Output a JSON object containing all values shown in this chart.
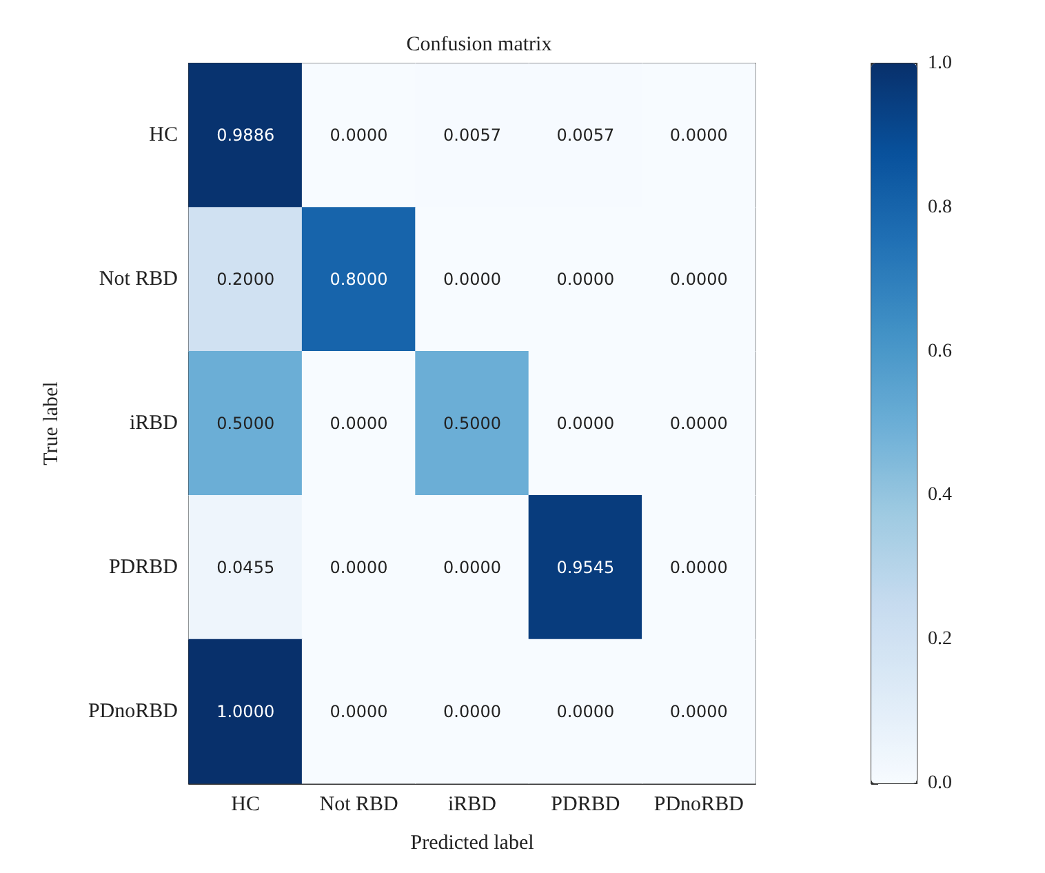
{
  "chart_data": {
    "type": "heatmap",
    "title": "Confusion matrix",
    "xlabel": "Predicted label",
    "ylabel": "True label",
    "categories": [
      "HC",
      "Not RBD",
      "iRBD",
      "PDRBD",
      "PDnoRBD"
    ],
    "y_categories": [
      "HC",
      "Not RBD",
      "iRBD",
      "PDRBD",
      "PDnoRBD"
    ],
    "cells": [
      [
        0.9886,
        0,
        0.0057,
        0.0057,
        0
      ],
      [
        0.2,
        0.8,
        0,
        0,
        0
      ],
      [
        0.5,
        0,
        0.5,
        0,
        0
      ],
      [
        0.0455,
        0,
        0,
        0.9545,
        0
      ],
      [
        1,
        0,
        0,
        0,
        0
      ]
    ],
    "cell_labels": [
      [
        "0.9886",
        "0.0000",
        "0.0057",
        "0.0057",
        "0.0000"
      ],
      [
        "0.2000",
        "0.8000",
        "0.0000",
        "0.0000",
        "0.0000"
      ],
      [
        "0.5000",
        "0.0000",
        "0.5000",
        "0.0000",
        "0.0000"
      ],
      [
        "0.0455",
        "0.0000",
        "0.0000",
        "0.9545",
        "0.0000"
      ],
      [
        "1.0000",
        "0.0000",
        "0.0000",
        "0.0000",
        "0.0000"
      ]
    ],
    "clim": [
      0,
      1
    ],
    "cticks": [
      {
        "value": 0,
        "label": "0.0"
      },
      {
        "value": 0.2,
        "label": "0.2"
      },
      {
        "value": 0.4,
        "label": "0.4"
      },
      {
        "value": 0.6,
        "label": "0.6"
      },
      {
        "value": 0.8,
        "label": "0.8"
      },
      {
        "value": 1,
        "label": "1.0"
      }
    ]
  }
}
